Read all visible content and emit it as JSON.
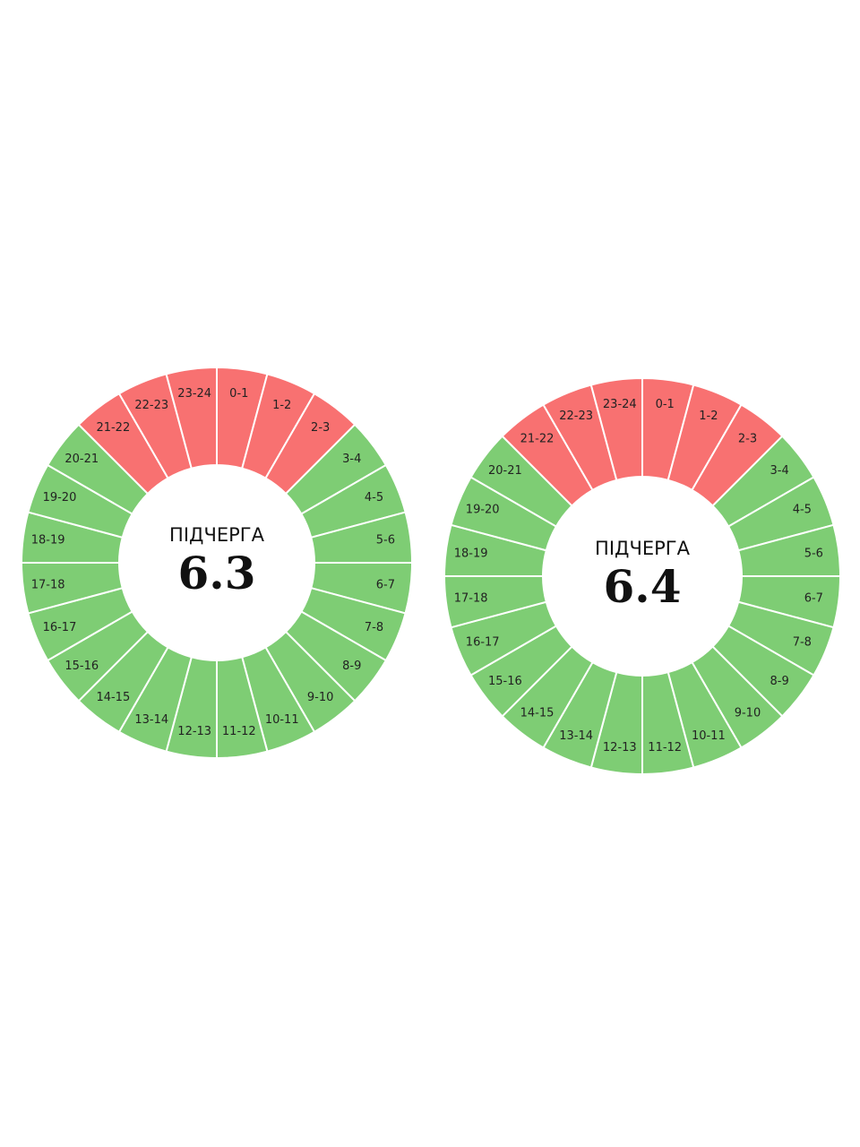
{
  "colors": {
    "off": "#f87171",
    "on": "#7ecd74"
  },
  "dials": [
    {
      "label": "ПІДЧЕРГА",
      "number": "6.3",
      "segments": [
        {
          "label": "0-1",
          "off": true
        },
        {
          "label": "1-2",
          "off": true
        },
        {
          "label": "2-3",
          "off": true
        },
        {
          "label": "3-4",
          "off": false
        },
        {
          "label": "4-5",
          "off": false
        },
        {
          "label": "5-6",
          "off": false
        },
        {
          "label": "6-7",
          "off": false
        },
        {
          "label": "7-8",
          "off": false
        },
        {
          "label": "8-9",
          "off": false
        },
        {
          "label": "9-10",
          "off": false
        },
        {
          "label": "10-11",
          "off": false
        },
        {
          "label": "11-12",
          "off": false
        },
        {
          "label": "12-13",
          "off": false
        },
        {
          "label": "13-14",
          "off": false
        },
        {
          "label": "14-15",
          "off": false
        },
        {
          "label": "15-16",
          "off": false
        },
        {
          "label": "16-17",
          "off": false
        },
        {
          "label": "17-18",
          "off": false
        },
        {
          "label": "18-19",
          "off": false
        },
        {
          "label": "19-20",
          "off": false
        },
        {
          "label": "20-21",
          "off": false
        },
        {
          "label": "21-22",
          "off": true
        },
        {
          "label": "22-23",
          "off": true
        },
        {
          "label": "23-24",
          "off": true
        }
      ]
    },
    {
      "label": "ПІДЧЕРГА",
      "number": "6.4",
      "segments": [
        {
          "label": "0-1",
          "off": true
        },
        {
          "label": "1-2",
          "off": true
        },
        {
          "label": "2-3",
          "off": true
        },
        {
          "label": "3-4",
          "off": false
        },
        {
          "label": "4-5",
          "off": false
        },
        {
          "label": "5-6",
          "off": false
        },
        {
          "label": "6-7",
          "off": false
        },
        {
          "label": "7-8",
          "off": false
        },
        {
          "label": "8-9",
          "off": false
        },
        {
          "label": "9-10",
          "off": false
        },
        {
          "label": "10-11",
          "off": false
        },
        {
          "label": "11-12",
          "off": false
        },
        {
          "label": "12-13",
          "off": false
        },
        {
          "label": "13-14",
          "off": false
        },
        {
          "label": "14-15",
          "off": false
        },
        {
          "label": "15-16",
          "off": false
        },
        {
          "label": "16-17",
          "off": false
        },
        {
          "label": "17-18",
          "off": false
        },
        {
          "label": "18-19",
          "off": false
        },
        {
          "label": "19-20",
          "off": false
        },
        {
          "label": "20-21",
          "off": false
        },
        {
          "label": "21-22",
          "off": true
        },
        {
          "label": "22-23",
          "off": true
        },
        {
          "label": "23-24",
          "off": true
        }
      ]
    }
  ]
}
